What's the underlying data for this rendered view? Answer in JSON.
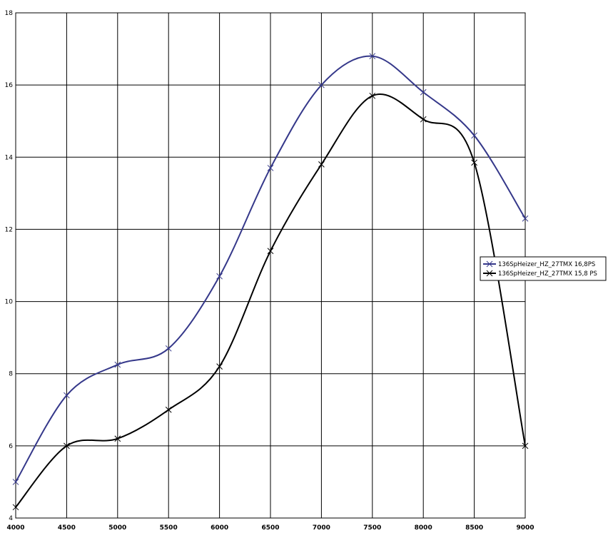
{
  "chart_data": {
    "type": "line",
    "x": [
      4000,
      4500,
      5000,
      5500,
      6000,
      6500,
      7000,
      7500,
      8000,
      8500,
      9000
    ],
    "series": [
      {
        "name": "136SpHeizer_HZ_27TMX 16,8PS",
        "values": [
          5.0,
          7.4,
          8.25,
          8.7,
          10.7,
          13.7,
          16.0,
          16.8,
          15.8,
          14.6,
          12.3
        ],
        "color": "#35388a",
        "marker": "x"
      },
      {
        "name": "136SpHeizer_HZ_27TMX 15,8 PS",
        "values": [
          4.3,
          6.0,
          6.2,
          7.0,
          8.2,
          11.4,
          13.8,
          15.7,
          15.05,
          13.85,
          6.0
        ],
        "color": "#000000",
        "marker": "x"
      }
    ],
    "xlim": [
      4000,
      9000
    ],
    "ylim": [
      4,
      18
    ],
    "x_ticks": [
      4000,
      4500,
      5000,
      5500,
      6000,
      6500,
      7000,
      7500,
      8000,
      8500,
      9000
    ],
    "y_ticks": [
      4,
      6,
      8,
      10,
      12,
      14,
      16,
      18
    ],
    "title": "",
    "xlabel": "",
    "ylabel": "",
    "grid": true,
    "legend_position": "right",
    "smooth": true
  }
}
